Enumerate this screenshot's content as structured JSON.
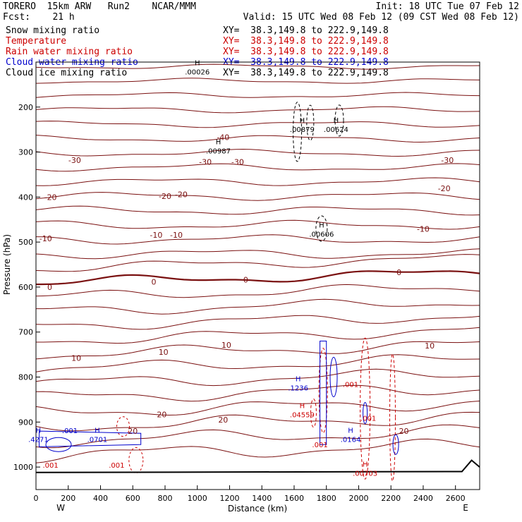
{
  "header": {
    "model": "TORERO  15km ARW   Run2    NCAR/MMM",
    "init": "Init: 18 UTC Tue 07 Feb 12",
    "fcst": "Fcst:    21 h",
    "valid": "Valid: 15 UTC Wed 08 Feb 12 (09 CST Wed 08 Feb 12)"
  },
  "fields": [
    {
      "name": "Snow mixing ratio",
      "xy": "XY=  38.3,149.8 to 222.9,149.8",
      "color": "#000000"
    },
    {
      "name": "Temperature",
      "xy": "XY=  38.3,149.8 to 222.9,149.8",
      "color": "#cc0000"
    },
    {
      "name": "Rain water mixing ratio",
      "xy": "XY=  38.3,149.8 to 222.9,149.8",
      "color": "#cc0000"
    },
    {
      "name": "Cloud water mixing ratio",
      "xy": "XY=  38.3,149.8 to 222.9,149.8",
      "color": "#0000cc"
    },
    {
      "name": "Cloud ice mixing ratio",
      "xy": "XY=  38.3,149.8 to 222.9,149.8",
      "color": "#000000"
    }
  ],
  "chart_data": {
    "type": "contour cross-section",
    "xlabel": "Distance (km)",
    "ylabel": "Pressure (hPa)",
    "xlim": [
      0,
      2750
    ],
    "ylim": [
      1050,
      100
    ],
    "x_ticks": [
      0,
      200,
      400,
      600,
      800,
      1000,
      1200,
      1400,
      1600,
      1800,
      2000,
      2200,
      2400,
      2600
    ],
    "y_ticks": [
      200,
      300,
      400,
      500,
      600,
      700,
      800,
      900,
      1000
    ],
    "west_label": "W",
    "east_label": "E",
    "temperature_labels": [
      {
        "text": "-40",
        "x": 1160,
        "p": 267
      },
      {
        "text": "-30",
        "x": 240,
        "p": 318
      },
      {
        "text": "-30",
        "x": 1050,
        "p": 322
      },
      {
        "text": "-30",
        "x": 1250,
        "p": 322
      },
      {
        "text": "-30",
        "x": 2550,
        "p": 318
      },
      {
        "text": "-20",
        "x": 90,
        "p": 400
      },
      {
        "text": "-20",
        "x": 800,
        "p": 398
      },
      {
        "text": "-20",
        "x": 900,
        "p": 394
      },
      {
        "text": "-20",
        "x": 2530,
        "p": 381
      },
      {
        "text": "-10",
        "x": 60,
        "p": 492
      },
      {
        "text": "-10",
        "x": 745,
        "p": 484
      },
      {
        "text": "-10",
        "x": 870,
        "p": 484
      },
      {
        "text": "-10",
        "x": 2400,
        "p": 471
      },
      {
        "text": "0",
        "x": 85,
        "p": 600
      },
      {
        "text": "0",
        "x": 730,
        "p": 588
      },
      {
        "text": "0",
        "x": 1300,
        "p": 584
      },
      {
        "text": "0",
        "x": 2250,
        "p": 567
      },
      {
        "text": "10",
        "x": 250,
        "p": 758
      },
      {
        "text": "10",
        "x": 790,
        "p": 744
      },
      {
        "text": "10",
        "x": 1180,
        "p": 729
      },
      {
        "text": "10",
        "x": 2440,
        "p": 730
      },
      {
        "text": "20",
        "x": 780,
        "p": 883
      },
      {
        "text": "20",
        "x": 1160,
        "p": 895
      },
      {
        "text": "20",
        "x": 600,
        "p": 920
      },
      {
        "text": "20",
        "x": 2280,
        "p": 920
      }
    ],
    "extrema": [
      {
        "marker": "H",
        "value": ".00026",
        "x": 1000,
        "p": 113,
        "field": "Snow mixing ratio"
      },
      {
        "marker": "H",
        "value": ".00987",
        "x": 1130,
        "p": 289,
        "field": "Snow mixing ratio"
      },
      {
        "marker": "H",
        "value": ".00879",
        "x": 1650,
        "p": 241,
        "field": "Snow mixing ratio"
      },
      {
        "marker": "H",
        "value": ".00624",
        "x": 1860,
        "p": 241,
        "field": "Snow mixing ratio"
      },
      {
        "marker": "H",
        "value": ".00606",
        "x": 1770,
        "p": 474,
        "field": "Cloud ice mixing ratio"
      },
      {
        "marker": "H",
        "value": ".1236",
        "x": 1625,
        "p": 816,
        "field": "Cloud water mixing ratio"
      },
      {
        "marker": "H",
        "value": ".04559",
        "x": 1650,
        "p": 875,
        "field": "Rain water mixing ratio"
      },
      {
        "marker": "H",
        "value": ".0164",
        "x": 1950,
        "p": 930,
        "field": "Cloud water mixing ratio"
      },
      {
        "marker": "H",
        "value": ".00703",
        "x": 2040,
        "p": 1005,
        "field": "Rain water mixing ratio"
      },
      {
        "marker": "H",
        "value": ".4271",
        "x": 15,
        "p": 930,
        "field": "Cloud water mixing ratio"
      },
      {
        "marker": "H",
        "value": ".0701",
        "x": 380,
        "p": 930,
        "field": "Cloud water mixing ratio"
      }
    ],
    "contour_labels": [
      {
        "text": ".001",
        "x": 1950,
        "p": 816,
        "field": "Rain water mixing ratio"
      },
      {
        "text": ".001",
        "x": 2060,
        "p": 891,
        "field": "Rain water mixing ratio"
      },
      {
        "text": ".001",
        "x": 1760,
        "p": 950,
        "field": "Rain water mixing ratio"
      },
      {
        "text": ".001",
        "x": 90,
        "p": 995,
        "field": "Rain water mixing ratio"
      },
      {
        "text": ".001",
        "x": 500,
        "p": 995,
        "field": "Rain water mixing ratio"
      },
      {
        "text": ".001",
        "x": 210,
        "p": 918,
        "field": "Cloud water mixing ratio"
      }
    ]
  }
}
